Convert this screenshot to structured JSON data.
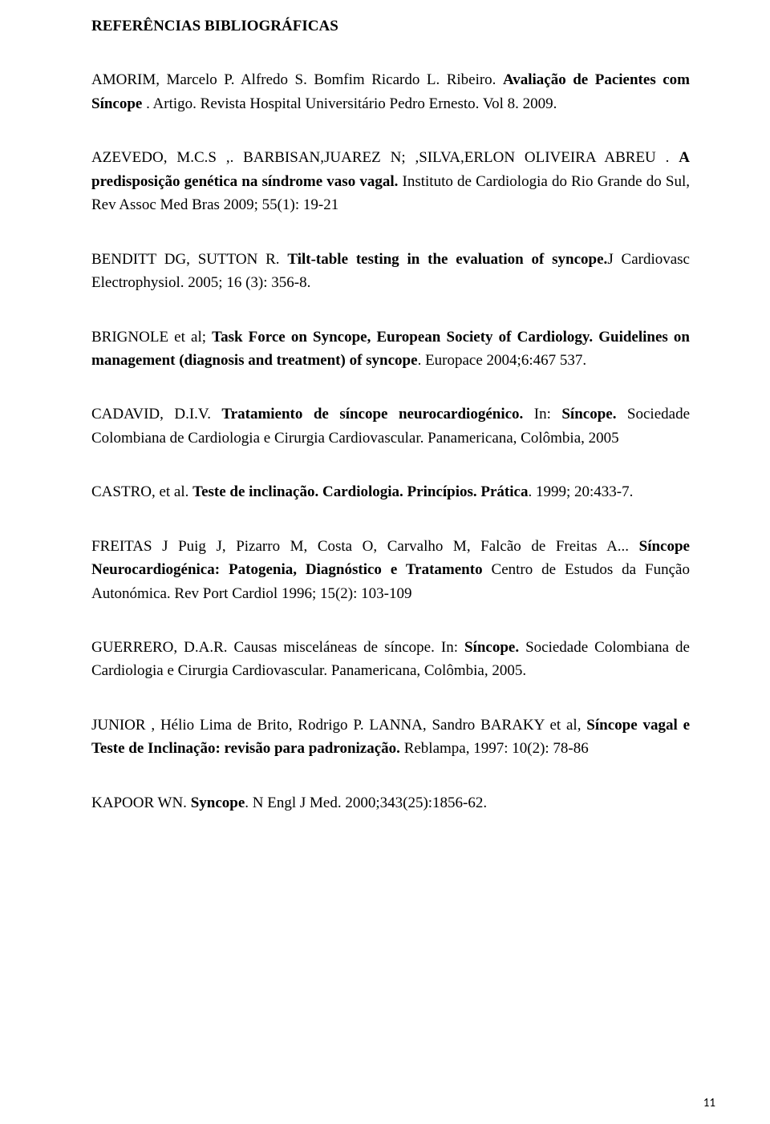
{
  "section_title": "REFERÊNCIAS BIBLIOGRÁFICAS",
  "page_number": "11",
  "refs": [
    {
      "segments": [
        {
          "t": "AMORIM, Marcelo P. Alfredo S. Bomfim Ricardo L. Ribeiro. ",
          "b": false
        },
        {
          "t": "Avaliação de Pacientes com Síncope",
          "b": true
        },
        {
          "t": " . Artigo. Revista Hospital Universitário Pedro Ernesto. Vol 8. 2009.",
          "b": false
        }
      ]
    },
    {
      "segments": [
        {
          "t": "AZEVEDO, M.C.S ,. BARBISAN,JUAREZ N; ,SILVA,ERLON OLIVEIRA ABREU . ",
          "b": false
        },
        {
          "t": "A predisposição genética na síndrome vaso vagal.",
          "b": true
        },
        {
          "t": " Instituto de Cardiologia do Rio Grande do Sul, Rev Assoc Med Bras 2009; 55(1): 19-21",
          "b": false
        }
      ]
    },
    {
      "segments": [
        {
          "t": "BENDITT DG, SUTTON R. ",
          "b": false
        },
        {
          "t": "Tilt-table testing in the evaluation of syncope.",
          "b": true
        },
        {
          "t": "J Cardiovasc Electrophysiol. 2005; 16 (3): 356-8.",
          "b": false
        }
      ]
    },
    {
      "segments": [
        {
          "t": "BRIGNOLE et al; ",
          "b": false
        },
        {
          "t": "Task Force on Syncope, European Society of Cardiology. Guidelines on management (diagnosis and treatment) of syncope",
          "b": true
        },
        {
          "t": ". Europace 2004;6:467 537.",
          "b": false
        }
      ]
    },
    {
      "segments": [
        {
          "t": "CADAVID, D.I.V.  ",
          "b": false
        },
        {
          "t": "Tratamiento de síncope neurocardiogénico.",
          "b": true
        },
        {
          "t": " In: ",
          "b": false
        },
        {
          "t": "Síncope.",
          "b": true
        },
        {
          "t": "  Sociedade Colombiana de Cardiologia e Cirurgia Cardiovascular. Panamericana, Colômbia, 2005",
          "b": false
        }
      ]
    },
    {
      "segments": [
        {
          "t": "CASTRO, et al. ",
          "b": false
        },
        {
          "t": "Teste de inclinação. Cardiologia. Princípios. Prática",
          "b": true
        },
        {
          "t": ". 1999; 20:433-7.",
          "b": false
        }
      ]
    },
    {
      "segments": [
        {
          "t": "FREITAS J Puig J, Pizarro M, Costa O, Carvalho M, Falcão de Freitas A... ",
          "b": false
        },
        {
          "t": "Síncope Neurocardiogénica: Patogenia, Diagnóstico e Tratamento",
          "b": true
        },
        {
          "t": " Centro de Estudos da Função Autonómica. Rev Port Cardiol 1996; 15(2): 103-109",
          "b": false
        }
      ]
    },
    {
      "segments": [
        {
          "t": "GUERRERO, D.A.R.  Causas misceláneas de síncope. In: ",
          "b": false
        },
        {
          "t": "Síncope.",
          "b": true
        },
        {
          "t": "  Sociedade  Colombiana de Cardiologia e Cirurgia Cardiovascular. Panamericana, Colômbia, 2005.",
          "b": false
        }
      ]
    },
    {
      "segments": [
        {
          "t": "JUNIOR , Hélio Lima de Brito, Rodrigo P. LANNA, Sandro BARAKY et al,  ",
          "b": false
        },
        {
          "t": "Síncope vagal e Teste de Inclinação: revisão para padronização.",
          "b": true
        },
        {
          "t": "  Reblampa, 1997: 10(2): 78-86",
          "b": false
        }
      ]
    },
    {
      "segments": [
        {
          "t": "KAPOOR WN. ",
          "b": false
        },
        {
          "t": "Syncope",
          "b": true
        },
        {
          "t": ". N Engl J Med. 2000;343(25):1856-62.",
          "b": false
        }
      ]
    }
  ]
}
